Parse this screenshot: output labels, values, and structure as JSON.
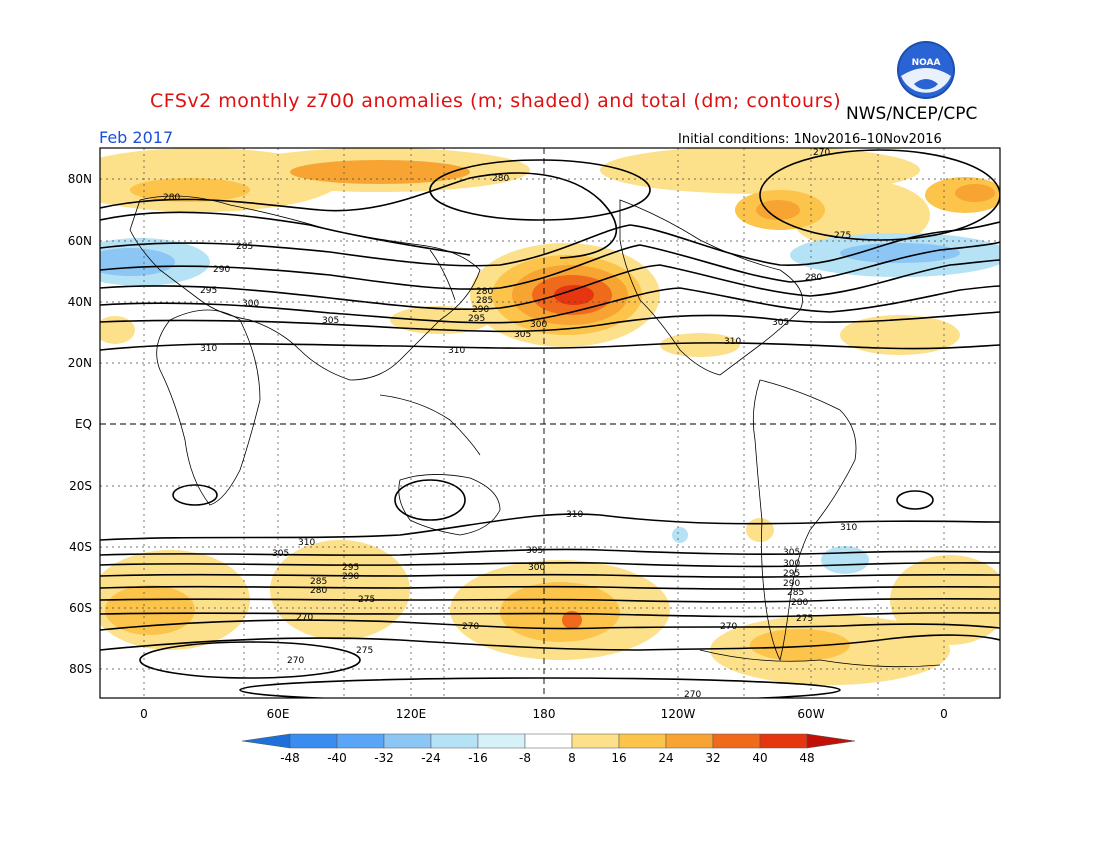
{
  "header": {
    "title": "CFSv2 monthly z700 anomalies (m; shaded) and total (dm; contours)",
    "agency": "NWS/NCEP/CPC",
    "month": "Feb 2017",
    "initial_conditions": "Initial conditions: 1Nov2016–10Nov2016",
    "logo_text": "NOAA"
  },
  "axes": {
    "lat_labels": [
      "80N",
      "60N",
      "40N",
      "20N",
      "EQ",
      "20S",
      "40S",
      "60S",
      "80S"
    ],
    "lon_labels": [
      "0",
      "60E",
      "120E",
      "180",
      "120W",
      "60W",
      "0"
    ]
  },
  "colorbar": {
    "ticks": [
      "-48",
      "-40",
      "-32",
      "-24",
      "-16",
      "-8",
      "8",
      "16",
      "24",
      "32",
      "40",
      "48"
    ],
    "colors": [
      "#1e6fd9",
      "#3a8cf0",
      "#5aa5f5",
      "#8cc6f5",
      "#b5e2f5",
      "#d6f2f8",
      "#ffffff",
      "#fde08a",
      "#fcc44a",
      "#f7a433",
      "#f06a1c",
      "#e5360f",
      "#c01008"
    ]
  },
  "contour_labels": [
    "280",
    "285",
    "290",
    "295",
    "300",
    "305",
    "310",
    "275",
    "270"
  ],
  "colors": {
    "title": "#e01010",
    "month": "#1f4fd8",
    "positive_anomaly": "#fcc44a",
    "negative_anomaly": "#8cc6f5"
  }
}
